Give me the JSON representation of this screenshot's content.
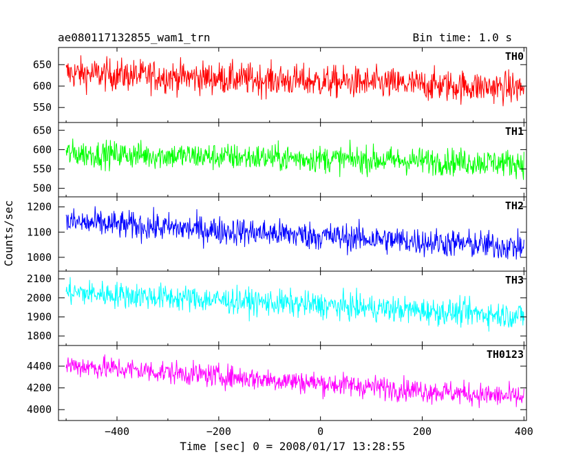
{
  "header": {
    "title": "ae080117132855_wam1_trn",
    "bin_time": "Bin time: 1.0 s"
  },
  "chart_data": {
    "type": "line",
    "title": "ae080117132855_wam1_trn",
    "subtitle": "Bin time: 1.0 s",
    "xlabel": "Time [sec] 0 = 2008/01/17 13:28:55",
    "ylabel": "Counts/sec",
    "xlim": [
      -515,
      405
    ],
    "xticks": [
      -400,
      -200,
      0,
      200,
      400
    ],
    "xtick_labels": [
      "−400",
      "−200",
      "0",
      "200",
      "400"
    ],
    "x_range": [
      -500,
      400
    ],
    "bin_seconds": 1.0,
    "grid": false,
    "panels": [
      {
        "name": "TH0",
        "color": "#ff0000",
        "ylim": [
          515,
          690
        ],
        "yticks": [
          550,
          600,
          650
        ],
        "start": 630,
        "end": 595,
        "noise": 30,
        "range": [
          520,
          690
        ]
      },
      {
        "name": "TH1",
        "color": "#00ff00",
        "ylim": [
          478,
          670
        ],
        "yticks": [
          500,
          550,
          600,
          650
        ],
        "start": 590,
        "end": 565,
        "noise": 28,
        "range": [
          480,
          665
        ]
      },
      {
        "name": "TH2",
        "color": "#0000ff",
        "ylim": [
          945,
          1240
        ],
        "yticks": [
          1000,
          1100,
          1200
        ],
        "start": 1140,
        "end": 1040,
        "noise": 45,
        "range": [
          950,
          1240
        ]
      },
      {
        "name": "TH3",
        "color": "#00ffff",
        "ylim": [
          1750,
          2140
        ],
        "yticks": [
          1800,
          1900,
          2000,
          2100
        ],
        "start": 2030,
        "end": 1905,
        "noise": 55,
        "range": [
          1760,
          2140
        ]
      },
      {
        "name": "TH0123",
        "color": "#ff00ff",
        "ylim": [
          3900,
          4590
        ],
        "yticks": [
          4000,
          4200,
          4400
        ],
        "start": 4410,
        "end": 4110,
        "noise": 85,
        "range": [
          3920,
          4590
        ]
      }
    ]
  }
}
